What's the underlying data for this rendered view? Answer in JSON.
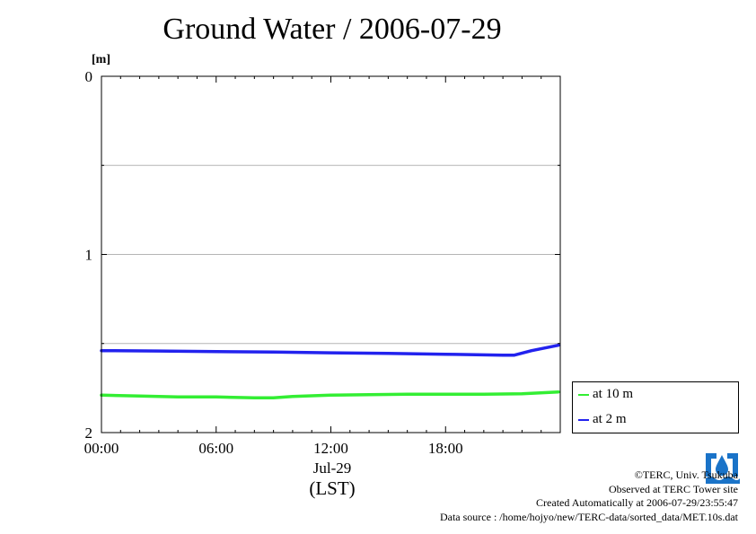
{
  "title": "Ground Water / 2006-07-29",
  "credits": {
    "copyright": "©TERC, Univ. Tsukuba",
    "observed": "Observed at TERC Tower site",
    "created": "Created Automatically at 2006-07-29/23:55:47",
    "source": "Data source : /home/hojyo/new/TERC-data/sorted_data/MET.10s.dat"
  },
  "chart_data": {
    "type": "line",
    "title": "Ground Water / 2006-07-29",
    "ylabel": "[m]",
    "xlabel": "(LST)",
    "x_date_label": "Jul-29",
    "ylim": [
      0,
      2
    ],
    "y_inverted": true,
    "y_ticks": [
      "0",
      "1",
      "2"
    ],
    "y_minor_grid": [
      0.5,
      1.5
    ],
    "xlim_hours": [
      0,
      24
    ],
    "x_ticks": [
      {
        "hour": 0,
        "label": "00:00"
      },
      {
        "hour": 6,
        "label": "06:00"
      },
      {
        "hour": 12,
        "label": "12:00"
      },
      {
        "hour": 18,
        "label": "18:00"
      }
    ],
    "grid": true,
    "legend_position": "right-bottom, outside plot",
    "series": [
      {
        "name": "at 10 m",
        "color": "#33ee33",
        "points": [
          [
            0,
            1.79
          ],
          [
            2,
            1.795
          ],
          [
            4,
            1.8
          ],
          [
            6,
            1.8
          ],
          [
            8,
            1.805
          ],
          [
            9,
            1.805
          ],
          [
            10,
            1.797
          ],
          [
            12,
            1.79
          ],
          [
            14,
            1.787
          ],
          [
            16,
            1.785
          ],
          [
            18,
            1.785
          ],
          [
            20,
            1.785
          ],
          [
            22,
            1.782
          ],
          [
            23.9,
            1.772
          ]
        ]
      },
      {
        "name": "at 2 m",
        "color": "#2222ee",
        "points": [
          [
            0,
            1.54
          ],
          [
            3,
            1.542
          ],
          [
            6,
            1.545
          ],
          [
            9,
            1.548
          ],
          [
            12,
            1.552
          ],
          [
            15,
            1.555
          ],
          [
            18,
            1.56
          ],
          [
            21,
            1.565
          ],
          [
            21.6,
            1.565
          ],
          [
            22.5,
            1.54
          ],
          [
            23.9,
            1.51
          ]
        ]
      }
    ]
  },
  "legend": {
    "items": [
      {
        "label": "at 10 m",
        "color": "#33ee33"
      },
      {
        "label": "at 2 m",
        "color": "#2222ee"
      }
    ]
  }
}
